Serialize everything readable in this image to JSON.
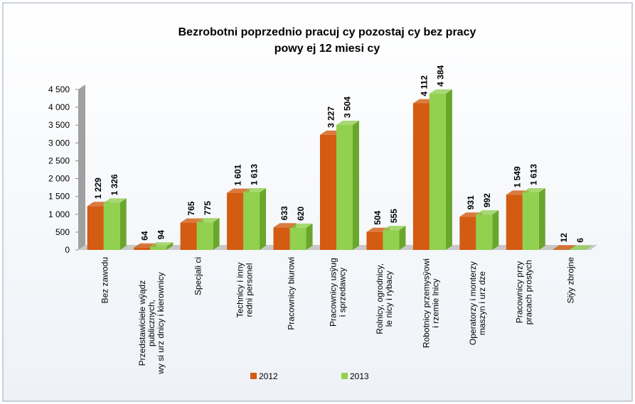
{
  "chart_data": {
    "type": "bar3d",
    "title": [
      "Bezrobotni poprzednio pracuj  cy pozostaj  cy bez pracy",
      "powy  ej 12 miesi  cy"
    ],
    "categories": [
      [
        "Bez zawodu"
      ],
      [
        "Przedstawiciele wÿądz",
        "publicznych,",
        "wy  si urz  dnicy i kierownicy"
      ],
      [
        "Specjali  ci"
      ],
      [
        "Technicy i inny",
        "redni personel"
      ],
      [
        "Pracownicy biurowi"
      ],
      [
        "Pracownicy usÿug",
        "i sprzedawcy"
      ],
      [
        "Rolnicy, ogrodnicy,",
        "le  nicy i rybacy"
      ],
      [
        "Robotnicy przemysÿowi",
        "i rzemie  lnicy"
      ],
      [
        "Operatorzy i monterzy",
        "maszyn i urz  dze"
      ],
      [
        "Pracownicy przy",
        "pracach prostych"
      ],
      [
        "Siÿy zbrojne"
      ]
    ],
    "series": [
      {
        "name": "2012",
        "color": "#d35b12",
        "side": "#a8420a",
        "values": [
          1229,
          64,
          765,
          1601,
          633,
          3227,
          504,
          4112,
          931,
          1549,
          12
        ],
        "value_labels": [
          "1 229",
          "64",
          "765",
          "1 601",
          "633",
          "3 227",
          "504",
          "4 112",
          "931",
          "1 549",
          "12"
        ]
      },
      {
        "name": "2013",
        "color": "#92d050",
        "side": "#6aa62c",
        "values": [
          1326,
          94,
          775,
          1613,
          620,
          3504,
          555,
          4384,
          992,
          1613,
          6
        ],
        "value_labels": [
          "1 326",
          "94",
          "775",
          "1 613",
          "620",
          "3 504",
          "555",
          "4 384",
          "992",
          "1 613",
          "6"
        ]
      }
    ],
    "ylim": [
      0,
      4500
    ],
    "yticks": [
      0,
      500,
      {
        "value": 1000,
        "label": "1 000"
      },
      {
        "value": 1500,
        "label": "1 500"
      },
      {
        "value": 2000,
        "label": "2 000"
      },
      {
        "value": 2500,
        "label": "2 500"
      },
      {
        "value": 3000,
        "label": "3 000"
      },
      {
        "value": 3500,
        "label": "3 500"
      },
      {
        "value": 4000,
        "label": "4 000"
      },
      {
        "value": 4500,
        "label": "4 500"
      }
    ]
  }
}
